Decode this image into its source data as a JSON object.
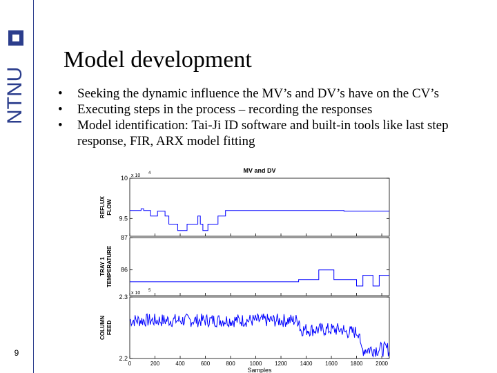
{
  "slide": {
    "title": "Model development",
    "page_number": "9",
    "logo_text": "NTNU",
    "bullets": [
      "Seeking the dynamic influence the MV’s and DV’s have on the CV’s",
      "Executing steps in the process – recording the responses",
      "Model identification:  Tai-Ji ID software and built-in tools like last step response, FIR, ARX model fitting"
    ],
    "bullet_symbol": "•"
  },
  "colors": {
    "line": "#0000ff",
    "sidebar_line": "#2b3d8c",
    "axis": "#000000",
    "grid_bg": "#ffffff"
  },
  "chart_data": [
    {
      "type": "line",
      "title": "MV and DV",
      "ylabel": "REFLUX FLOW",
      "exponent_label": "x 10",
      "exponent_power": "4",
      "ylim": [
        9.28,
        10.0
      ],
      "yticks": [
        "10",
        "9.5"
      ],
      "ytick_values": [
        10.0,
        9.5
      ],
      "steps": [
        [
          0,
          9.6
        ],
        [
          90,
          9.62
        ],
        [
          110,
          9.6
        ],
        [
          165,
          9.53
        ],
        [
          220,
          9.59
        ],
        [
          280,
          9.53
        ],
        [
          310,
          9.43
        ],
        [
          380,
          9.35
        ],
        [
          455,
          9.43
        ],
        [
          540,
          9.53
        ],
        [
          560,
          9.43
        ],
        [
          580,
          9.35
        ],
        [
          620,
          9.43
        ],
        [
          700,
          9.53
        ],
        [
          760,
          9.6
        ],
        [
          1700,
          9.59
        ],
        [
          2060,
          9.59
        ]
      ]
    },
    {
      "type": "line",
      "ylabel": "TRAY 1 TEMPERATURE",
      "ylim": [
        85.2,
        87.0
      ],
      "yticks": [
        "87",
        "86"
      ],
      "ytick_values": [
        87,
        86
      ],
      "steps": [
        [
          0,
          85.63
        ],
        [
          1330,
          85.63
        ],
        [
          1340,
          85.7
        ],
        [
          1500,
          85.7
        ],
        [
          1500,
          86.0
        ],
        [
          1620,
          86.0
        ],
        [
          1620,
          85.7
        ],
        [
          1800,
          85.7
        ],
        [
          1800,
          85.5
        ],
        [
          1850,
          85.5
        ],
        [
          1850,
          85.83
        ],
        [
          1930,
          85.83
        ],
        [
          1930,
          85.5
        ],
        [
          1980,
          85.5
        ],
        [
          1980,
          85.83
        ],
        [
          2060,
          85.83
        ]
      ]
    },
    {
      "type": "line",
      "ylabel": "COLUMN FEED",
      "exponent_label": "x 10",
      "exponent_power": "5",
      "xlabel": "Samples",
      "ylim": [
        2.2,
        2.3
      ],
      "yticks": [
        "2.3",
        "2.2"
      ],
      "ytick_values": [
        2.3,
        2.2
      ],
      "xticks": [
        0,
        200,
        400,
        600,
        800,
        1000,
        1200,
        1400,
        1600,
        1800,
        2000
      ],
      "xlim": [
        0,
        2060
      ],
      "noise_segments": [
        {
          "x0": 0,
          "x1": 1350,
          "mean": 2.262,
          "amp": 0.011
        },
        {
          "x0": 1350,
          "x1": 1700,
          "mean": 2.247,
          "amp": 0.011
        },
        {
          "x0": 1700,
          "x1": 1830,
          "mean": 2.243,
          "amp": 0.011
        },
        {
          "x0": 1830,
          "x1": 2060,
          "mean": 2.215,
          "amp": 0.012
        }
      ]
    }
  ]
}
